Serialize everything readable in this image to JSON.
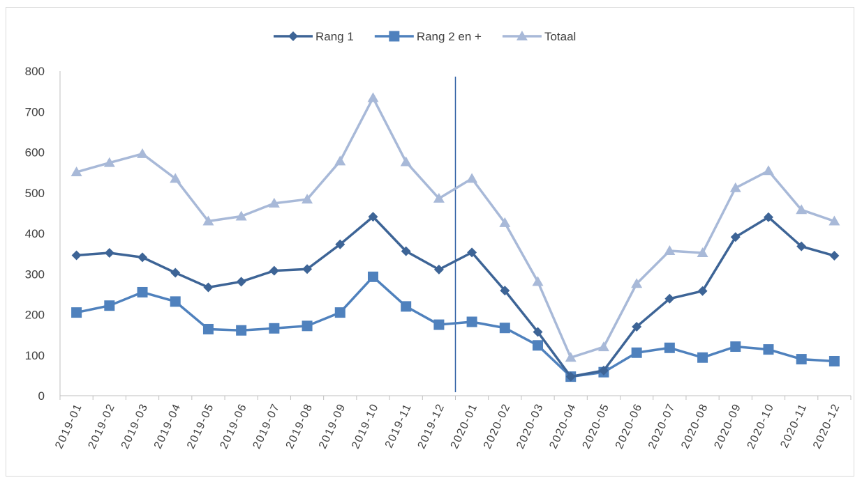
{
  "chart_data": {
    "type": "line",
    "title": "",
    "xlabel": "",
    "ylabel": "",
    "ylim": [
      0,
      800
    ],
    "yticks": [
      0,
      100,
      200,
      300,
      400,
      500,
      600,
      700,
      800
    ],
    "grid": false,
    "legend_position": "top-center",
    "categories": [
      "2019-01",
      "2019-02",
      "2019-03",
      "2019-04",
      "2019-05",
      "2019-06",
      "2019-07",
      "2019-08",
      "2019-09",
      "2019-10",
      "2019-11",
      "2019-12",
      "2020-01",
      "2020-02",
      "2020-03",
      "2020-04",
      "2020-05",
      "2020-06",
      "2020-07",
      "2020-08",
      "2020-09",
      "2020-10",
      "2020-11",
      "2020-12"
    ],
    "series": [
      {
        "name": "Rang 1",
        "color": "#3d6496",
        "marker": "diamond",
        "values": [
          346,
          352,
          341,
          303,
          267,
          281,
          308,
          312,
          373,
          441,
          356,
          311,
          353,
          259,
          157,
          47,
          62,
          170,
          239,
          258,
          391,
          440,
          368,
          345
        ]
      },
      {
        "name": "Rang 2 en +",
        "color": "#4f81bd",
        "marker": "square",
        "values": [
          205,
          222,
          255,
          232,
          164,
          161,
          166,
          172,
          205,
          293,
          220,
          175,
          182,
          167,
          124,
          47,
          58,
          106,
          118,
          94,
          121,
          114,
          90,
          85
        ]
      },
      {
        "name": "Totaal",
        "color": "#a8b9d8",
        "marker": "triangle",
        "values": [
          551,
          574,
          596,
          535,
          430,
          442,
          474,
          484,
          578,
          734,
          576,
          486,
          535,
          426,
          281,
          94,
          120,
          276,
          357,
          352,
          512,
          554,
          458,
          430
        ]
      }
    ],
    "vertical_line_between": [
      "2019-12",
      "2020-01"
    ],
    "vertical_line_color": "#2e5fa3"
  }
}
